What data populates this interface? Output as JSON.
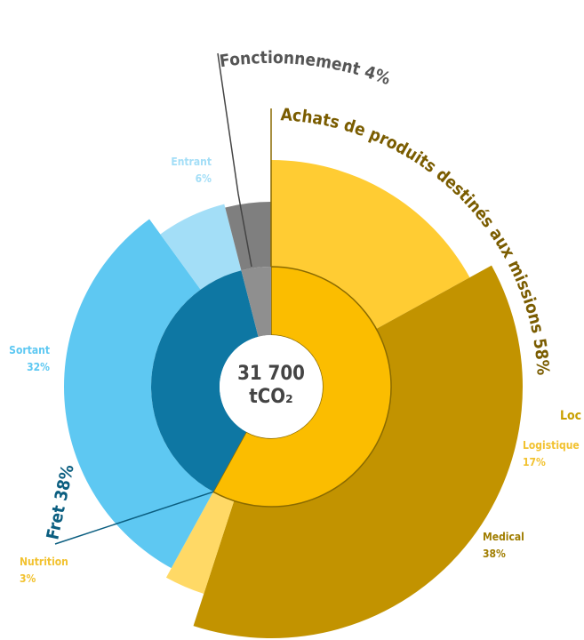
{
  "chart_data": {
    "type": "sunburst",
    "center_value": "31 700",
    "center_unit": "tCO₂",
    "categories": [
      "Achats de produits destinés aux missions",
      "Fret",
      "Fonctionnement"
    ],
    "values": [
      58,
      38,
      4
    ],
    "value_labels": [
      "58%",
      "38%",
      "4%"
    ],
    "colors": [
      "#fbbd00",
      "#0e77a3",
      "#8f8f8f"
    ],
    "label_colors": [
      "#7a5c00",
      "#0b5e80",
      "#555555"
    ],
    "children": [
      [
        {
          "name": "Logistique",
          "value": 17,
          "value_label": "17%",
          "color": "#ffcc33",
          "label_color": "#f2c230"
        },
        {
          "name": "Medical",
          "value": 38,
          "value_label": "38%",
          "color": "#c29300",
          "label_color": "#a07d00"
        },
        {
          "name": "Nutrition",
          "value": 3,
          "value_label": "3%",
          "color": "#ffd966",
          "label_color": "#f2c230"
        }
      ],
      [
        {
          "name": "Sortant",
          "value": 32,
          "value_label": "32%",
          "color": "#5ec8f2",
          "label_color": "#5ec8f2"
        },
        {
          "name": "Entrant",
          "value": 6,
          "value_label": "6%",
          "color": "#a3def7",
          "label_color": "#a3def7"
        }
      ],
      []
    ],
    "annotations": [
      "Loc"
    ]
  }
}
